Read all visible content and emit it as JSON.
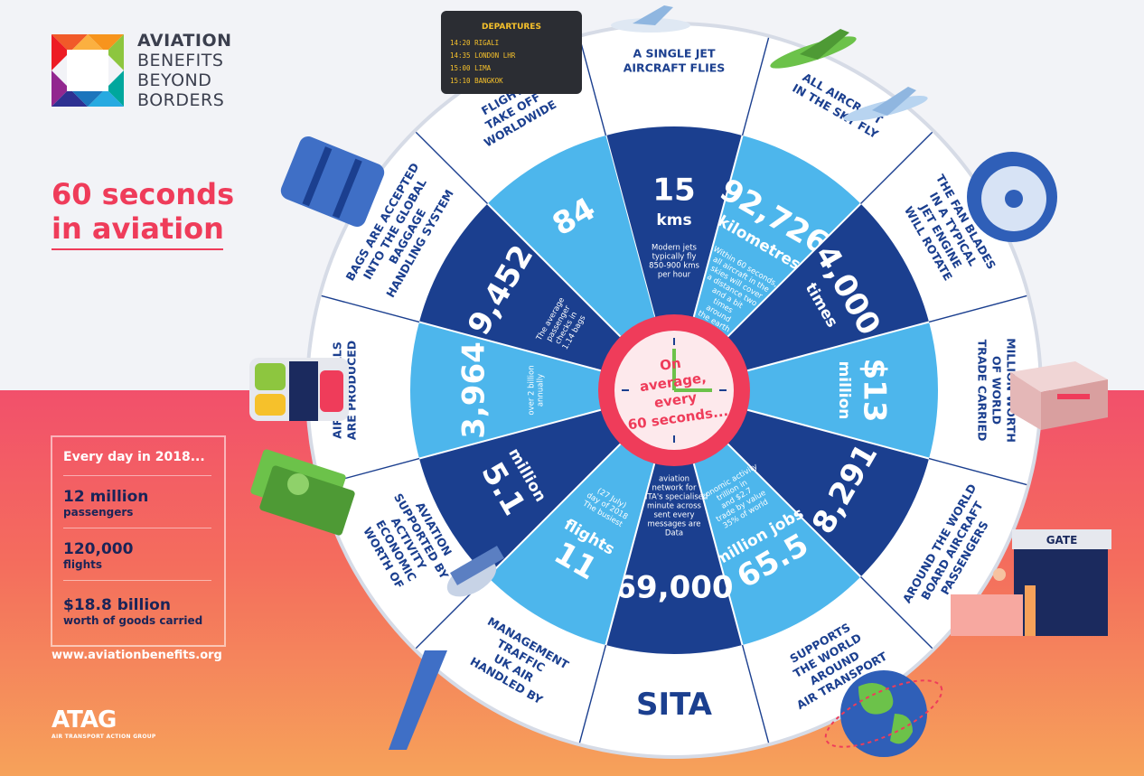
{
  "brand": {
    "line1": "AVIATION",
    "line2": "BENEFITS",
    "line3": "BEYOND",
    "line4": "BORDERS"
  },
  "title": {
    "line1": "60 seconds",
    "line2": "in aviation"
  },
  "daily": {
    "heading": "Every day in 2018...",
    "stats": [
      {
        "value": "12 million",
        "unit": "passengers"
      },
      {
        "value": "120,000",
        "unit": "flights"
      },
      {
        "value": "$18.8 billion",
        "unit": "worth of  goods carried"
      }
    ]
  },
  "url": "www.aviationbenefits.org",
  "atag": {
    "name": "ATAG",
    "full": "AIR TRANSPORT ACTION GROUP"
  },
  "center": {
    "line1": "On",
    "line2": "average,",
    "line3": "every",
    "line4": "60 seconds..."
  },
  "departures": {
    "title": "DEPARTURES",
    "rows": [
      "14:20  RIGALI",
      "14:35  LONDON LHR",
      "15:00  LIMA",
      "15:10  BANGKOK"
    ]
  },
  "gate_label": "GATE",
  "sita_label": "SITA",
  "segments": [
    {
      "outer": [
        "A SINGLE JET",
        "AIRCRAFT FLIES"
      ],
      "big": "15",
      "unit": "kms",
      "note": [
        "Modern jets",
        "typically fly",
        "850-900 kms",
        "per hour"
      ]
    },
    {
      "outer": [
        "ALL AIRCRAFT",
        "IN THE SKY FLY"
      ],
      "big": "92,726",
      "unit": "kilometres",
      "note": [
        "Within 60 seconds,",
        "all aircraft in the",
        "skies will cover",
        "a distance two",
        "and a bit",
        "times",
        "around",
        "the earth"
      ]
    },
    {
      "outer": [
        "THE FAN BLADES",
        "IN A TYPICAL",
        "JET ENGINE",
        "WILL ROTATE"
      ],
      "big": "4,000",
      "unit": "times",
      "note": []
    },
    {
      "outer": [
        "MILLION WORTH",
        "OF WORLD",
        "TRADE CARRIED"
      ],
      "big": "$13",
      "unit": "million",
      "note": []
    },
    {
      "outer": [
        "PASSENGERS",
        "BOARD AIRCRAFT",
        "AROUND THE WORLD"
      ],
      "big": "8,291",
      "unit": "",
      "note": []
    },
    {
      "outer": [
        "AIR TRANSPORT",
        "AROUND",
        "THE WORLD",
        "SUPPORTS"
      ],
      "big": "65.5",
      "unit": "million jobs",
      "note": [
        "35% of world",
        "trade by value",
        "and $2.7",
        "trillion in",
        "economic activity"
      ]
    },
    {
      "outer": [],
      "big": "69,000",
      "unit": "",
      "note": [
        "Data",
        "messages are",
        "sent every",
        "minute across",
        "SITA's specialised",
        "network for",
        "aviation"
      ]
    },
    {
      "outer": [
        "HANDLED BY",
        "UK AIR",
        "TRAFFIC",
        "MANAGEMENT"
      ],
      "big": "11",
      "unit": "flights",
      "note": [
        "The busiest",
        "day of 2018",
        "(27 July)"
      ]
    },
    {
      "outer": [
        "WORTH OF",
        "ECONOMIC",
        "ACTIVITY",
        "SUPPORTED BY",
        "AVIATION"
      ],
      "big": "5.1",
      "unit": "million",
      "note": []
    },
    {
      "outer": [
        "AIRLINE MEALS",
        "ARE PRODUCED"
      ],
      "big": "3,964",
      "unit": "",
      "note": [
        "over 2 billion",
        "annually"
      ]
    },
    {
      "outer": [
        "BAGS ARE ACCEPTED",
        "INTO THE GLOBAL",
        "BAGGAGE",
        "HANDLING SYSTEM"
      ],
      "big": "9,452",
      "unit": "",
      "note": [
        "The average",
        "passenger",
        "checks in",
        "1.14 bags"
      ]
    },
    {
      "outer": [
        "FLIGHTS",
        "TAKE OFF",
        "WORLDWIDE"
      ],
      "big": "84",
      "unit": "",
      "note": []
    }
  ],
  "colors": {
    "dark": "#1b3f8f",
    "light": "#4db6ec",
    "accent": "#ef3c5a",
    "clock_hand": "#6cc24a"
  }
}
